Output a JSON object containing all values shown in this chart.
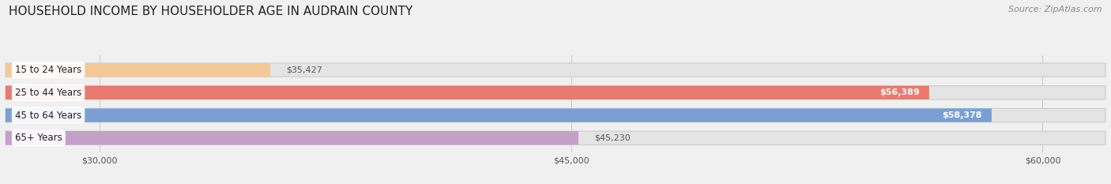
{
  "title": "HOUSEHOLD INCOME BY HOUSEHOLDER AGE IN AUDRAIN COUNTY",
  "source": "Source: ZipAtlas.com",
  "categories": [
    "15 to 24 Years",
    "25 to 44 Years",
    "45 to 64 Years",
    "65+ Years"
  ],
  "values": [
    35427,
    56389,
    58378,
    45230
  ],
  "bar_colors": [
    "#f5c897",
    "#e87a6e",
    "#7a9fd4",
    "#c4a0c8"
  ],
  "bar_edge_colors": [
    "#dba050",
    "#c05040",
    "#5070b0",
    "#9060a0"
  ],
  "value_labels": [
    "$35,427",
    "$56,389",
    "$58,378",
    "$45,230"
  ],
  "label_inside": [
    false,
    true,
    true,
    false
  ],
  "label_color_inside": "#ffffff",
  "label_color_outside": "#555555",
  "xmin": 0,
  "xlim_display": [
    27000,
    62000
  ],
  "xticks": [
    30000,
    45000,
    60000
  ],
  "xtick_labels": [
    "$30,000",
    "$45,000",
    "$60,000"
  ],
  "background_color": "#f0f0f0",
  "bar_bg_color": "#e4e4e4",
  "title_fontsize": 11,
  "source_fontsize": 8,
  "bar_height": 0.6,
  "figsize": [
    14.06,
    2.33
  ],
  "dpi": 100
}
